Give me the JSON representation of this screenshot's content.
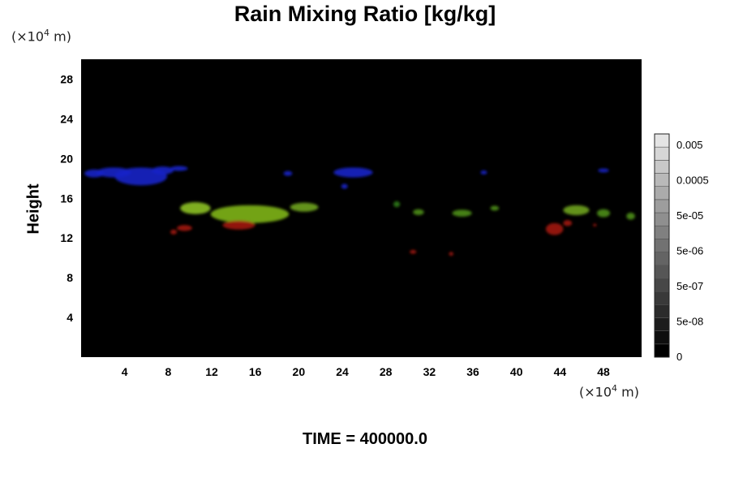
{
  "title": "Rain Mixing Ratio [kg/kg]",
  "y_unit": {
    "prefix": "(×10",
    "exp": "4",
    "suffix": " m)"
  },
  "x_unit": {
    "prefix": "(×10",
    "exp": "4",
    "suffix": " m)"
  },
  "footer": "TIME = 400000.0",
  "chart_data": {
    "type": "heatmap",
    "title": "Rain Mixing Ratio [kg/kg]",
    "xlabel": "",
    "ylabel": "Height",
    "xlim": [
      0,
      51.5
    ],
    "ylim": [
      0,
      30
    ],
    "x_ticks": [
      4,
      8,
      12,
      16,
      20,
      24,
      28,
      32,
      36,
      40,
      44,
      48
    ],
    "y_ticks": [
      4,
      8,
      12,
      16,
      20,
      24,
      28
    ],
    "background_color": "#000000",
    "colorbar": {
      "labels": [
        "0.005",
        "0.0005",
        "5e-05",
        "5e-06",
        "5e-07",
        "5e-08",
        "0"
      ],
      "levels": 17,
      "dark_color": "#000000",
      "light_color": "#e4e4e4"
    },
    "features": [
      {
        "layer": "blue",
        "color": "#1a23c8",
        "x": 5.5,
        "y": 18.2,
        "rx": 2.4,
        "ry": 0.9
      },
      {
        "layer": "blue",
        "color": "#1a23c8",
        "x": 3.0,
        "y": 18.6,
        "rx": 1.6,
        "ry": 0.5
      },
      {
        "layer": "blue",
        "color": "#1a23c8",
        "x": 1.2,
        "y": 18.5,
        "rx": 0.9,
        "ry": 0.4
      },
      {
        "layer": "blue",
        "color": "#1a23c8",
        "x": 7.5,
        "y": 18.8,
        "rx": 1.0,
        "ry": 0.4
      },
      {
        "layer": "blue",
        "color": "#1a23c8",
        "x": 9.0,
        "y": 19.0,
        "rx": 0.8,
        "ry": 0.25
      },
      {
        "layer": "blue",
        "color": "#1a23c8",
        "x": 25.0,
        "y": 18.6,
        "rx": 1.8,
        "ry": 0.5
      },
      {
        "layer": "blue",
        "color": "#1a23c8",
        "x": 19.0,
        "y": 18.5,
        "rx": 0.4,
        "ry": 0.25
      },
      {
        "layer": "blue",
        "color": "#1a23c8",
        "x": 24.2,
        "y": 17.2,
        "rx": 0.3,
        "ry": 0.25
      },
      {
        "layer": "blue",
        "color": "#1a23c8",
        "x": 37.0,
        "y": 18.6,
        "rx": 0.3,
        "ry": 0.2
      },
      {
        "layer": "blue",
        "color": "#1a23c8",
        "x": 48.0,
        "y": 18.8,
        "rx": 0.5,
        "ry": 0.2
      },
      {
        "layer": "green",
        "color": "#7fb51a",
        "x": 15.5,
        "y": 14.4,
        "rx": 3.6,
        "ry": 0.9
      },
      {
        "layer": "green",
        "color": "#8cc023",
        "x": 10.5,
        "y": 15.0,
        "rx": 1.4,
        "ry": 0.6
      },
      {
        "layer": "green",
        "color": "#6ea31c",
        "x": 20.5,
        "y": 15.1,
        "rx": 1.3,
        "ry": 0.45
      },
      {
        "layer": "green",
        "color": "#4c8e1a",
        "x": 31.0,
        "y": 14.6,
        "rx": 0.5,
        "ry": 0.3
      },
      {
        "layer": "green",
        "color": "#4c8e1a",
        "x": 35.0,
        "y": 14.5,
        "rx": 0.9,
        "ry": 0.35
      },
      {
        "layer": "green",
        "color": "#4c8e1a",
        "x": 38.0,
        "y": 15.0,
        "rx": 0.4,
        "ry": 0.25
      },
      {
        "layer": "green",
        "color": "#2f7a14",
        "x": 29.0,
        "y": 15.4,
        "rx": 0.3,
        "ry": 0.3
      },
      {
        "layer": "green",
        "color": "#6ea31c",
        "x": 45.5,
        "y": 14.8,
        "rx": 1.2,
        "ry": 0.5
      },
      {
        "layer": "green",
        "color": "#4c8e1a",
        "x": 48.0,
        "y": 14.5,
        "rx": 0.6,
        "ry": 0.4
      },
      {
        "layer": "green",
        "color": "#4c8e1a",
        "x": 50.5,
        "y": 14.2,
        "rx": 0.4,
        "ry": 0.35
      },
      {
        "layer": "red",
        "color": "#a11a12",
        "x": 14.5,
        "y": 13.3,
        "rx": 1.5,
        "ry": 0.45
      },
      {
        "layer": "red",
        "color": "#a11a12",
        "x": 9.5,
        "y": 13.0,
        "rx": 0.7,
        "ry": 0.3
      },
      {
        "layer": "red",
        "color": "#a11a12",
        "x": 8.5,
        "y": 12.6,
        "rx": 0.3,
        "ry": 0.25
      },
      {
        "layer": "red",
        "color": "#a11a12",
        "x": 43.5,
        "y": 12.9,
        "rx": 0.8,
        "ry": 0.6
      },
      {
        "layer": "red",
        "color": "#a11a12",
        "x": 44.7,
        "y": 13.5,
        "rx": 0.4,
        "ry": 0.3
      },
      {
        "layer": "red",
        "color": "#a11a12",
        "x": 30.5,
        "y": 10.6,
        "rx": 0.3,
        "ry": 0.2
      },
      {
        "layer": "red",
        "color": "#a11a12",
        "x": 34.0,
        "y": 10.4,
        "rx": 0.2,
        "ry": 0.2
      },
      {
        "layer": "red",
        "color": "#a11a12",
        "x": 47.2,
        "y": 13.3,
        "rx": 0.15,
        "ry": 0.15
      }
    ]
  }
}
